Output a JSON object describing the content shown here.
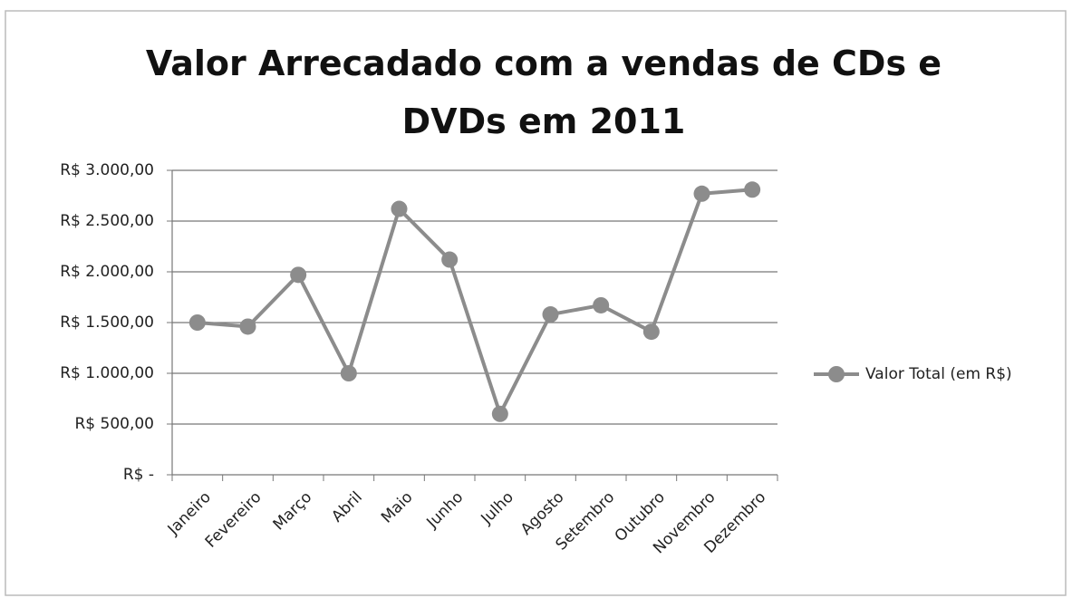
{
  "chart_data": {
    "type": "line",
    "title": "Valor Arrecadado com a vendas de CDs e DVDs em 2011",
    "categories": [
      "Janeiro",
      "Fevereiro",
      "Março",
      "Abril",
      "Maio",
      "Junho",
      "Julho",
      "Agosto",
      "Setembro",
      "Outubro",
      "Novembro",
      "Dezembro"
    ],
    "series": [
      {
        "name": "Valor Total (em R$)",
        "color": "#8c8c8c",
        "values": [
          1500,
          1460,
          1970,
          1000,
          2620,
          2120,
          600,
          1580,
          1670,
          1410,
          2770,
          2810
        ]
      }
    ],
    "ylim": [
      0,
      3000
    ],
    "yticks": [
      {
        "value": 0,
        "label": "R$ -"
      },
      {
        "value": 500,
        "label": "R$ 500,00"
      },
      {
        "value": 1000,
        "label": "R$ 1.000,00"
      },
      {
        "value": 1500,
        "label": "R$ 1.500,00"
      },
      {
        "value": 2000,
        "label": "R$ 2.000,00"
      },
      {
        "value": 2500,
        "label": "R$ 2.500,00"
      },
      {
        "value": 3000,
        "label": "R$ 3.000,00"
      }
    ],
    "grid": true,
    "legend": "right"
  }
}
